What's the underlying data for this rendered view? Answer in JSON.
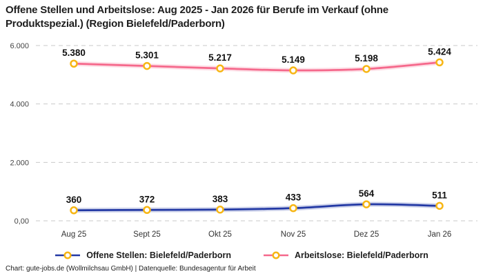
{
  "title": {
    "line1": "Offene Stellen und Arbeitslose: Aug 2025 - Jan 2026 für Berufe im Verkauf (ohne",
    "line2": "Produktspezial.) (Region Bielefeld/Paderborn)"
  },
  "footer": "Chart: gute-jobs.de (Wollmilchsau GmbH) | Datenquelle: Bundesagentur für Arbeit",
  "colors": {
    "background": "#ffffff",
    "title_text": "#1e1e1e",
    "grid": "#c9c9c9",
    "axis_tick_text": "#444444",
    "x_tick_text": "#333333",
    "data_label_text": "#111111",
    "marker_fill": "#ffffff",
    "marker_ring": "#f7b614",
    "series_offene_stellen": "#2238a4",
    "series_arbeitslose": "#f5688b"
  },
  "chart_data": {
    "type": "line",
    "title": "Offene Stellen und Arbeitslose: Aug 2025 - Jan 2026 für Berufe im Verkauf (ohne Produktspezial.) (Region Bielefeld/Paderborn)",
    "categories": [
      "Aug 25",
      "Sept 25",
      "Okt 25",
      "Nov 25",
      "Dez 25",
      "Jan 26"
    ],
    "series": [
      {
        "name": "Offene Stellen: Bielefeld/Paderborn",
        "color": "#2238a4",
        "values": [
          360,
          372,
          383,
          433,
          564,
          511
        ],
        "labels": [
          "360",
          "372",
          "383",
          "433",
          "564",
          "511"
        ]
      },
      {
        "name": "Arbeitslose: Bielefeld/Paderborn",
        "color": "#f5688b",
        "values": [
          5380,
          5301,
          5217,
          5149,
          5198,
          5424
        ],
        "labels": [
          "5.380",
          "5.301",
          "5.217",
          "5.149",
          "5.198",
          "5.424"
        ]
      }
    ],
    "y_ticks": [
      {
        "value": 0,
        "label": "0,00"
      },
      {
        "value": 2000,
        "label": "2.000"
      },
      {
        "value": 4000,
        "label": "4.000"
      },
      {
        "value": 6000,
        "label": "6.000"
      }
    ],
    "ylim": [
      0,
      6350
    ],
    "xlabel": "",
    "ylabel": "",
    "grid": "horizontal-dashed",
    "legend_position": "bottom",
    "marker": {
      "fill": "#ffffff",
      "ring": "#f7b614"
    }
  }
}
